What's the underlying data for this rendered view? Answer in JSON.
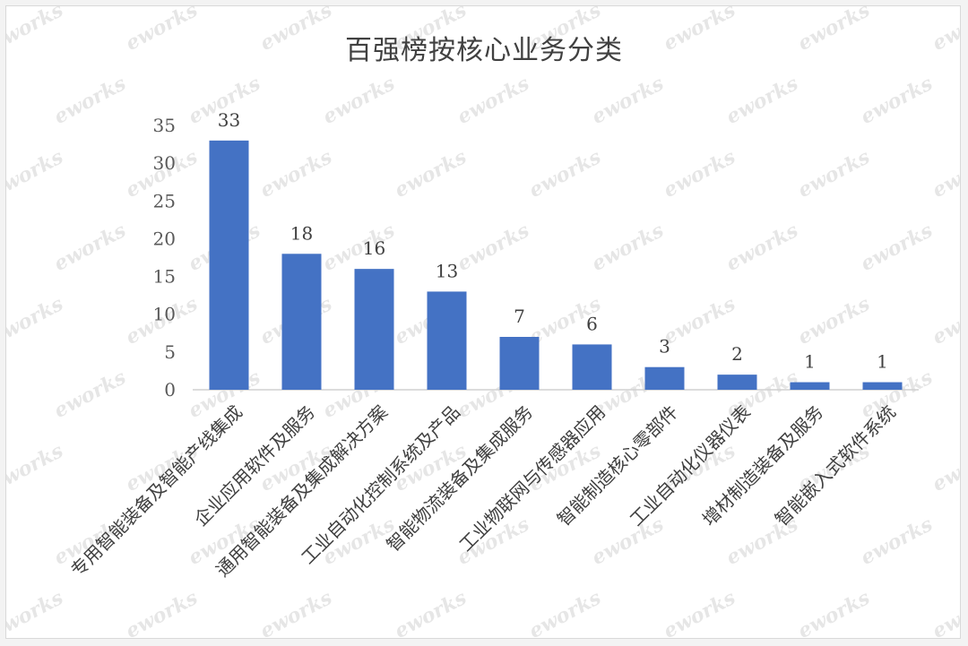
{
  "watermark_text": "eworks",
  "chart_data": {
    "type": "bar",
    "title": "百强榜按核心业务分类",
    "xlabel": "",
    "ylabel": "",
    "ylim": [
      0,
      35
    ],
    "yticks": [
      0,
      5,
      10,
      15,
      20,
      25,
      30,
      35
    ],
    "grid": false,
    "legend": "none",
    "bar_color": "#4472c4",
    "categories": [
      "专用智能装备及智能产线集成",
      "企业应用软件及服务",
      "通用智能装备及集成解决方案",
      "工业自动化控制系统及产品",
      "智能物流装备及集成服务",
      "工业物联网与传感器应用",
      "智能制造核心零部件",
      "工业自动化仪器仪表",
      "增材制造装备及服务",
      "智能嵌入式软件系统"
    ],
    "values": [
      33,
      18,
      16,
      13,
      7,
      6,
      3,
      2,
      1,
      1
    ]
  }
}
